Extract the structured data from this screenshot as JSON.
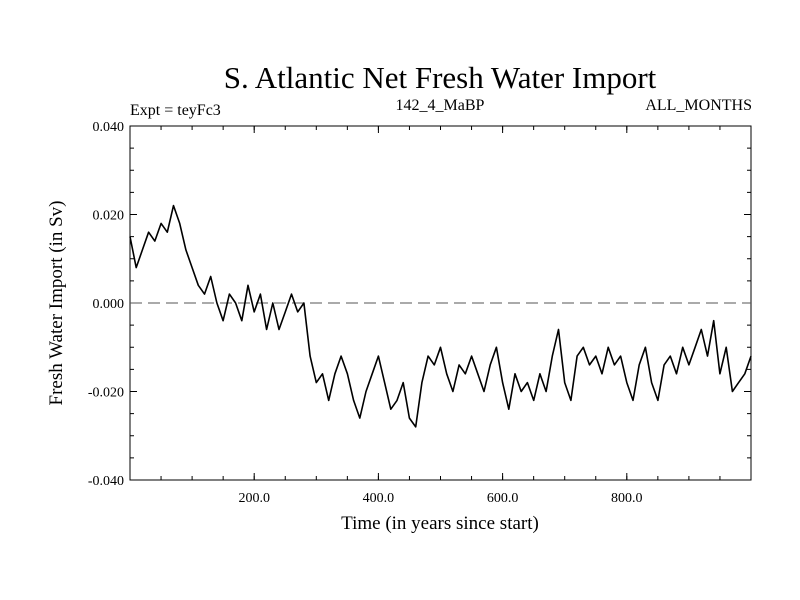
{
  "chart_data": {
    "type": "line",
    "title": "S. Atlantic Net Fresh Water Import",
    "subtitle_left": "Expt = teyFc3",
    "subtitle_center": "142_4_MaBP",
    "subtitle_right": "ALL_MONTHS",
    "xlabel": "Time (in years since start)",
    "ylabel": "Fresh Water Import (in Sv)",
    "xlim": [
      0,
      1000
    ],
    "ylim": [
      -0.04,
      0.04
    ],
    "x_ticks": [
      200,
      400,
      600,
      800
    ],
    "x_tick_labels": [
      "200.0",
      "400.0",
      "600.0",
      "800.0"
    ],
    "y_ticks": [
      -0.04,
      -0.02,
      0.0,
      0.02,
      0.04
    ],
    "y_tick_labels": [
      "-0.040",
      "-0.020",
      "0.000",
      "0.020",
      "0.040"
    ],
    "reference_line": {
      "y": 0.0,
      "style": "dashed"
    },
    "series": [
      {
        "name": "Net Fresh Water Import",
        "x": [
          0,
          10,
          20,
          30,
          40,
          50,
          60,
          70,
          80,
          90,
          100,
          110,
          120,
          130,
          140,
          150,
          160,
          170,
          180,
          190,
          200,
          210,
          220,
          230,
          240,
          250,
          260,
          270,
          280,
          290,
          300,
          310,
          320,
          330,
          340,
          350,
          360,
          370,
          380,
          390,
          400,
          410,
          420,
          430,
          440,
          450,
          460,
          470,
          480,
          490,
          500,
          510,
          520,
          530,
          540,
          550,
          560,
          570,
          580,
          590,
          600,
          610,
          620,
          630,
          640,
          650,
          660,
          670,
          680,
          690,
          700,
          710,
          720,
          730,
          740,
          750,
          760,
          770,
          780,
          790,
          800,
          810,
          820,
          830,
          840,
          850,
          860,
          870,
          880,
          890,
          900,
          910,
          920,
          930,
          940,
          950,
          960,
          970,
          980,
          990,
          1000
        ],
        "values": [
          0.015,
          0.008,
          0.012,
          0.016,
          0.014,
          0.018,
          0.016,
          0.022,
          0.018,
          0.012,
          0.008,
          0.004,
          0.002,
          0.006,
          0.0,
          -0.004,
          0.002,
          0.0,
          -0.004,
          0.004,
          -0.002,
          0.002,
          -0.006,
          0.0,
          -0.006,
          -0.002,
          0.002,
          -0.002,
          0.0,
          -0.012,
          -0.018,
          -0.016,
          -0.022,
          -0.016,
          -0.012,
          -0.016,
          -0.022,
          -0.026,
          -0.02,
          -0.016,
          -0.012,
          -0.018,
          -0.024,
          -0.022,
          -0.018,
          -0.026,
          -0.028,
          -0.018,
          -0.012,
          -0.014,
          -0.01,
          -0.016,
          -0.02,
          -0.014,
          -0.016,
          -0.012,
          -0.016,
          -0.02,
          -0.014,
          -0.01,
          -0.018,
          -0.024,
          -0.016,
          -0.02,
          -0.018,
          -0.022,
          -0.016,
          -0.02,
          -0.012,
          -0.006,
          -0.018,
          -0.022,
          -0.012,
          -0.01,
          -0.014,
          -0.012,
          -0.016,
          -0.01,
          -0.014,
          -0.012,
          -0.018,
          -0.022,
          -0.014,
          -0.01,
          -0.018,
          -0.022,
          -0.014,
          -0.012,
          -0.016,
          -0.01,
          -0.014,
          -0.01,
          -0.006,
          -0.012,
          -0.004,
          -0.016,
          -0.01,
          -0.02,
          -0.018,
          -0.016,
          -0.012
        ]
      }
    ]
  }
}
